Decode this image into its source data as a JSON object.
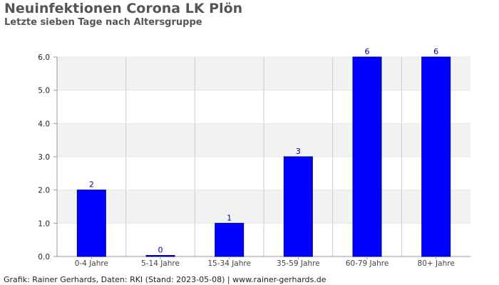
{
  "title": "Neuinfektionen Corona LK Plön",
  "subtitle": "Letzte sieben Tage nach Altersgruppe",
  "footer": "Grafik: Rainer Gerhards, Daten: RKI (Stand: 2023-05-08) | www.rainer-gerhards.de",
  "colors": {
    "bar": "#0000ff",
    "bar_edge": "#00008b",
    "value_label": "#00008b",
    "band": "#f2f2f2",
    "grid": "#cccccc"
  },
  "chart_data": {
    "type": "bar",
    "title": "Neuinfektionen Corona LK Plön",
    "subtitle": "Letzte sieben Tage nach Altersgruppe",
    "categories": [
      "0-4 Jahre",
      "5-14 Jahre",
      "15-34 Jahre",
      "35-59 Jahre",
      "60-79 Jahre",
      "80+ Jahre"
    ],
    "values": [
      2,
      0,
      1,
      3,
      6,
      6
    ],
    "value_labels": [
      "2",
      "0",
      "1",
      "3",
      "6",
      "6"
    ],
    "y_ticks": [
      "0.0",
      "1.0",
      "2.0",
      "3.0",
      "4.0",
      "5.0",
      "6.0"
    ],
    "ylim": [
      0,
      6
    ],
    "xlabel": "",
    "ylabel": "",
    "grid": true,
    "legend": "none"
  }
}
